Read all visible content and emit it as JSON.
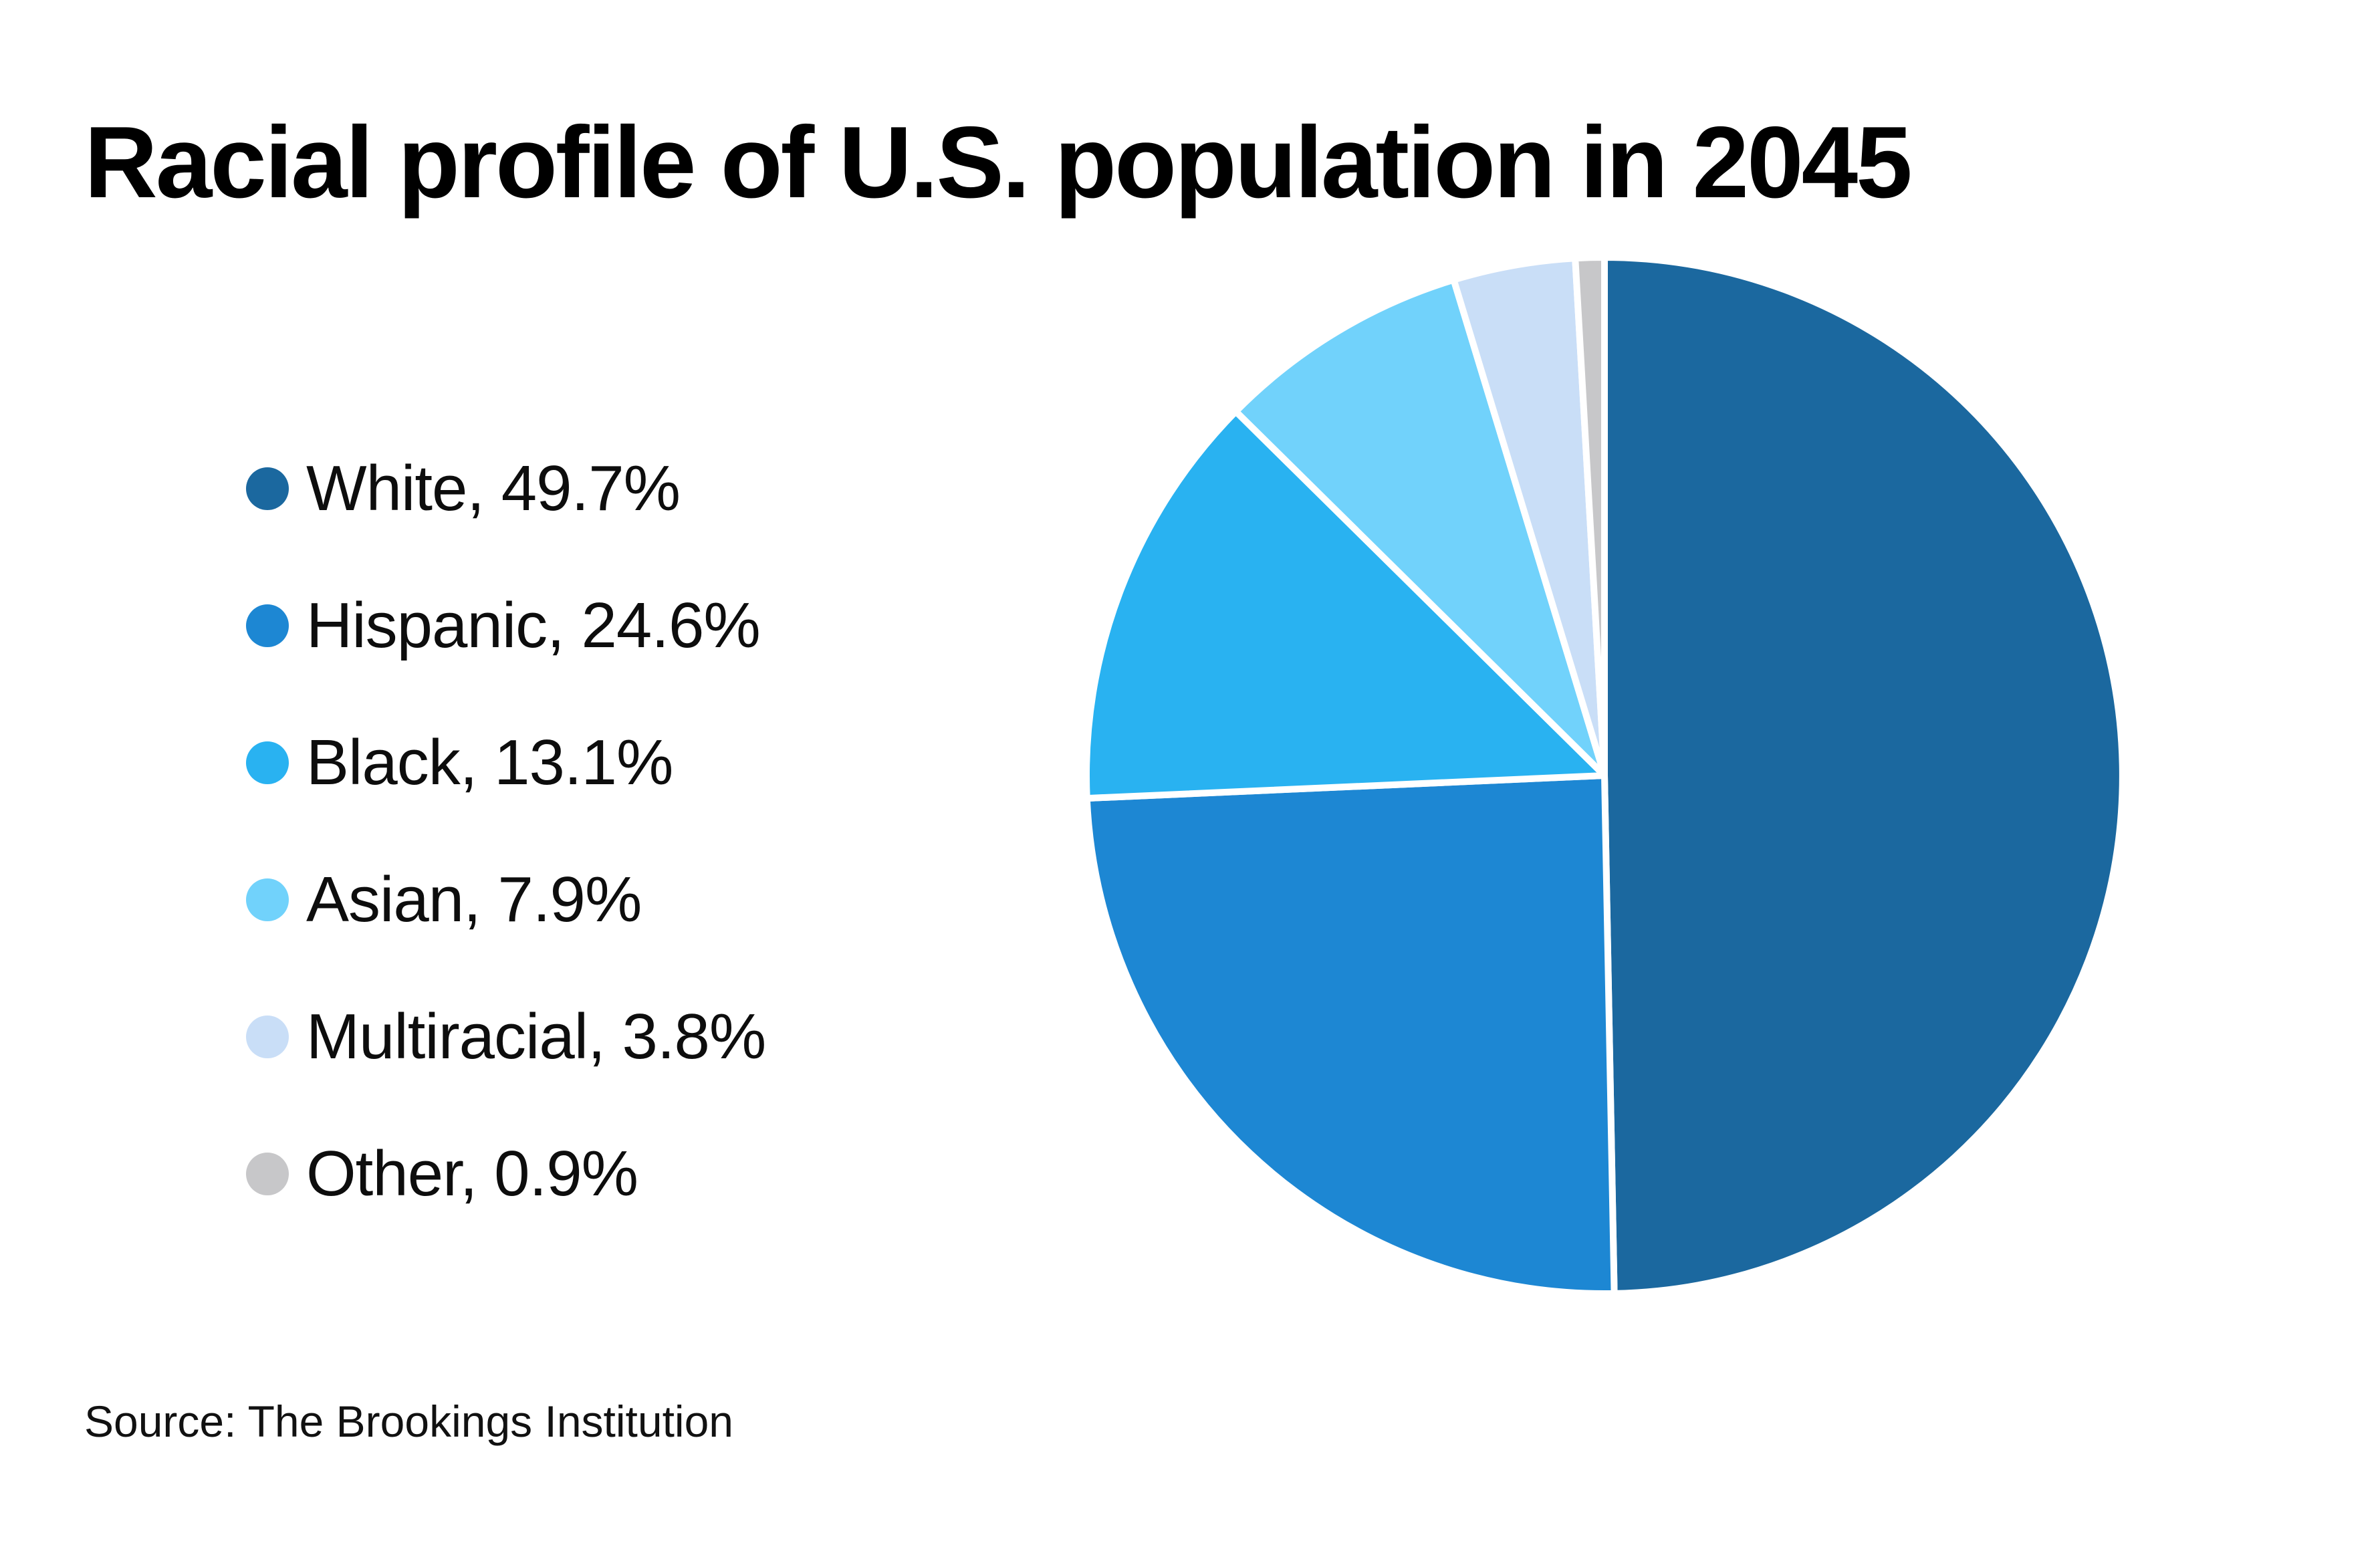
{
  "title": "Racial profile of U.S. population in 2045",
  "source": "Source: The Brookings Institution",
  "colors": {
    "background": "#ffffff",
    "title_text": "#000000",
    "body_text": "#0d0d0d",
    "slice_separator": "#ffffff"
  },
  "chart_data": {
    "type": "pie",
    "title": "Racial profile of U.S. population in 2045",
    "values_unit": "%",
    "start_angle_deg": 0,
    "direction": "clockwise",
    "legend_position": "left",
    "slices": [
      {
        "label": "White",
        "value": 49.7,
        "color": "#1b689f",
        "legend_label": "White, 49.7%"
      },
      {
        "label": "Hispanic",
        "value": 24.6,
        "color": "#1d87d3",
        "legend_label": "Hispanic, 24.6%"
      },
      {
        "label": "Black",
        "value": 13.1,
        "color": "#29b2f1",
        "legend_label": "Black, 13.1%"
      },
      {
        "label": "Asian",
        "value": 7.9,
        "color": "#71d2fb",
        "legend_label": "Asian, 7.9%"
      },
      {
        "label": "Multiracial",
        "value": 3.8,
        "color": "#c9def7",
        "legend_label": "Multiracial, 3.8%"
      },
      {
        "label": "Other",
        "value": 0.9,
        "color": "#c7c7c9",
        "legend_label": "Other, 0.9%"
      }
    ]
  }
}
